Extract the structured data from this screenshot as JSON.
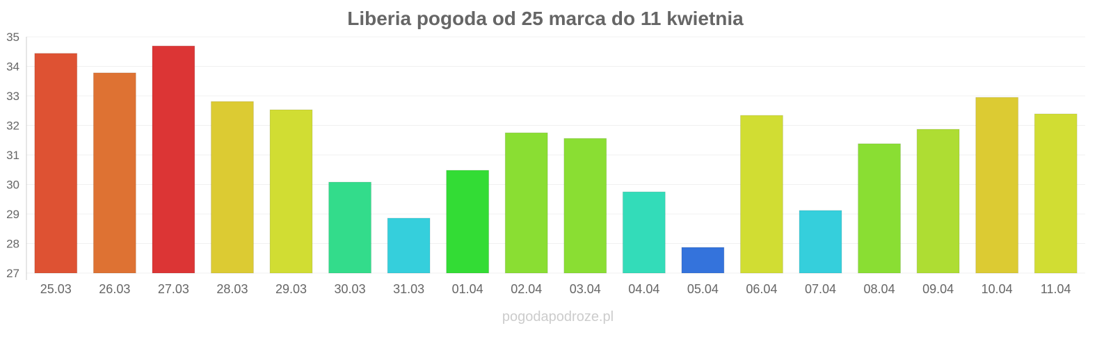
{
  "chart_data": {
    "type": "bar",
    "title": "Liberia pogoda od 25 marca do 11 kwietnia",
    "xlabel": "",
    "ylabel": "",
    "ylim": [
      27,
      35
    ],
    "yticks": [
      27,
      28,
      29,
      30,
      31,
      32,
      33,
      34,
      35
    ],
    "grid": true,
    "categories": [
      "25.03",
      "26.03",
      "27.03",
      "28.03",
      "29.03",
      "30.03",
      "31.03",
      "01.04",
      "02.04",
      "03.04",
      "04.04",
      "05.04",
      "06.04",
      "07.04",
      "08.04",
      "09.04",
      "10.04",
      "11.04"
    ],
    "values": [
      34.44,
      33.78,
      34.69,
      32.81,
      32.53,
      30.08,
      28.86,
      30.48,
      31.75,
      31.56,
      29.75,
      27.87,
      32.34,
      29.12,
      31.38,
      31.87,
      32.95,
      32.39
    ],
    "colors": [
      "#de5233",
      "#de7233",
      "#dc3535",
      "#dccb33",
      "#d1dd33",
      "#33dc8b",
      "#35cfdc",
      "#33dc35",
      "#8ade33",
      "#8ade33",
      "#33dcb9",
      "#3473dc",
      "#d1dd33",
      "#35cfdc",
      "#8ade33",
      "#aedd33",
      "#dccb33",
      "#d1dd33"
    ]
  },
  "watermark": "pogodapodroze.pl"
}
